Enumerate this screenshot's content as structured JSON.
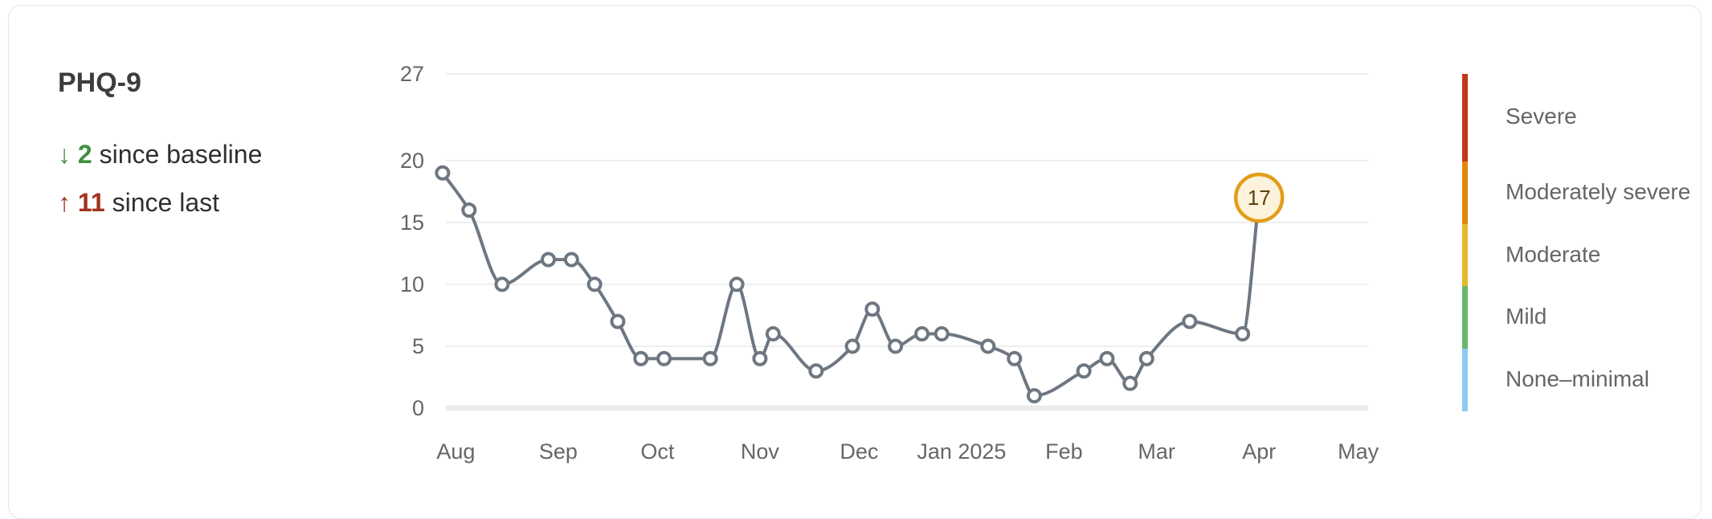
{
  "header": {
    "title": "PHQ-9",
    "baseline": {
      "arrow": "↓",
      "value": "2",
      "text": " since baseline"
    },
    "last": {
      "arrow": "↑",
      "value": "11",
      "text": " since last"
    }
  },
  "colors": {
    "line": "#6e7781",
    "highlight_border": "#e29e18",
    "highlight_fill": "#fdf3dc",
    "grid": "#eeeeee"
  },
  "chart_data": {
    "type": "line",
    "title": "PHQ-9",
    "xlabel": "",
    "ylabel": "",
    "ylim": [
      0,
      27
    ],
    "yticks": [
      0,
      5,
      10,
      15,
      20,
      27
    ],
    "xticks": [
      {
        "label": "Aug",
        "date": "2024-08-01"
      },
      {
        "label": "Sep",
        "date": "2024-09-01"
      },
      {
        "label": "Oct",
        "date": "2024-10-01"
      },
      {
        "label": "Nov",
        "date": "2024-11-01"
      },
      {
        "label": "Dec",
        "date": "2024-12-01"
      },
      {
        "label": "Jan 2025",
        "date": "2025-01-01"
      },
      {
        "label": "Feb",
        "date": "2025-02-01"
      },
      {
        "label": "Mar",
        "date": "2025-03-01"
      },
      {
        "label": "Apr",
        "date": "2025-04-01"
      },
      {
        "label": "May",
        "date": "2025-05-01"
      }
    ],
    "series": [
      {
        "points": [
          {
            "x": "2024-07-28",
            "y": 19
          },
          {
            "x": "2024-08-05",
            "y": 16
          },
          {
            "x": "2024-08-15",
            "y": 10
          },
          {
            "x": "2024-08-29",
            "y": 12
          },
          {
            "x": "2024-09-05",
            "y": 12
          },
          {
            "x": "2024-09-12",
            "y": 10
          },
          {
            "x": "2024-09-19",
            "y": 7
          },
          {
            "x": "2024-09-26",
            "y": 4
          },
          {
            "x": "2024-10-03",
            "y": 4
          },
          {
            "x": "2024-10-17",
            "y": 4
          },
          {
            "x": "2024-10-25",
            "y": 10
          },
          {
            "x": "2024-11-01",
            "y": 4
          },
          {
            "x": "2024-11-05",
            "y": 6
          },
          {
            "x": "2024-11-18",
            "y": 3
          },
          {
            "x": "2024-11-29",
            "y": 5
          },
          {
            "x": "2024-12-05",
            "y": 8
          },
          {
            "x": "2024-12-12",
            "y": 5
          },
          {
            "x": "2024-12-20",
            "y": 6
          },
          {
            "x": "2024-12-26",
            "y": 6
          },
          {
            "x": "2025-01-09",
            "y": 5
          },
          {
            "x": "2025-01-17",
            "y": 4
          },
          {
            "x": "2025-01-23",
            "y": 1
          },
          {
            "x": "2025-02-07",
            "y": 3
          },
          {
            "x": "2025-02-14",
            "y": 4
          },
          {
            "x": "2025-02-21",
            "y": 2
          },
          {
            "x": "2025-02-26",
            "y": 4
          },
          {
            "x": "2025-03-11",
            "y": 7
          },
          {
            "x": "2025-03-27",
            "y": 6
          },
          {
            "x": "2025-04-01",
            "y": 17
          }
        ]
      }
    ],
    "highlight": {
      "x": "2025-04-01",
      "y": 17,
      "label": "17"
    },
    "severity_bands": [
      {
        "label": "Severe",
        "min": 20,
        "max": 27,
        "color": "#c0391c"
      },
      {
        "label": "Moderately severe",
        "min": 15,
        "max": 20,
        "color": "#e0870e"
      },
      {
        "label": "Moderate",
        "min": 10,
        "max": 15,
        "color": "#e7b82a"
      },
      {
        "label": "Mild",
        "min": 5,
        "max": 10,
        "color": "#6ab86d"
      },
      {
        "label": "None–minimal",
        "min": 0,
        "max": 5,
        "color": "#8ecaf0"
      }
    ],
    "grid": true
  }
}
